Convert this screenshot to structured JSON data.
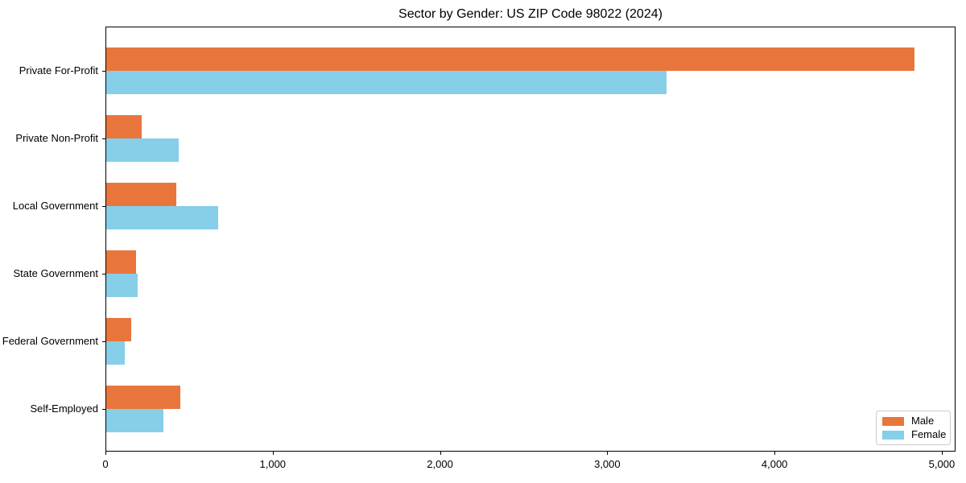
{
  "chart_data": {
    "type": "bar",
    "orientation": "horizontal",
    "title": "Sector by Gender: US ZIP Code 98022 (2024)",
    "xlabel": "",
    "ylabel": "",
    "categories": [
      "Private For-Profit",
      "Private Non-Profit",
      "Local Government",
      "State Government",
      "Federal Government",
      "Self-Employed"
    ],
    "series": [
      {
        "name": "Male",
        "color": "#E8763C",
        "values": [
          4830,
          210,
          420,
          180,
          150,
          445
        ]
      },
      {
        "name": "Female",
        "color": "#87CEE9",
        "values": [
          3350,
          435,
          670,
          190,
          110,
          340
        ]
      }
    ],
    "xlim": [
      0,
      5082
    ],
    "x_ticks": [
      0,
      1000,
      2000,
      3000,
      4000,
      5000
    ],
    "x_tick_labels": [
      "0",
      "1,000",
      "2,000",
      "3,000",
      "4,000",
      "5,000"
    ],
    "grid": false,
    "legend_position": "lower right",
    "legend": {
      "items": [
        {
          "label": "Male",
          "color": "#E8763C"
        },
        {
          "label": "Female",
          "color": "#87CEE9"
        }
      ]
    },
    "colors": {
      "male": "#E8763C",
      "female": "#87CEE9",
      "spine": "#000000",
      "legend_border": "#cccccc",
      "background": "#ffffff"
    }
  }
}
